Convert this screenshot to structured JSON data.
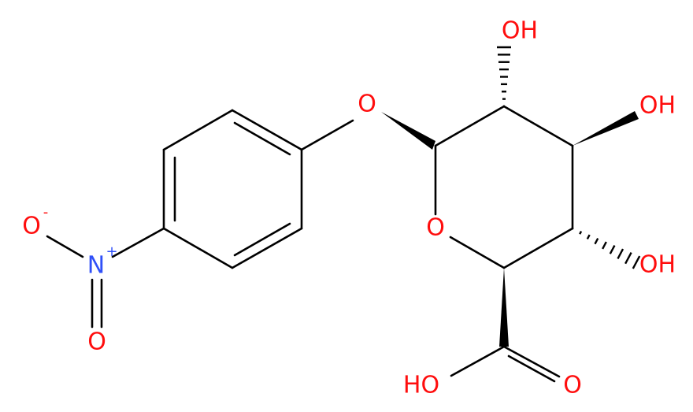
{
  "atoms": [
    {
      "label": "O"
    },
    {
      "label": "OH"
    },
    {
      "label": "OH"
    },
    {
      "label": "OH"
    },
    {
      "label": "O"
    },
    {
      "label": "HO"
    },
    {
      "label": "O"
    },
    {
      "label": "O",
      "charge": "-"
    },
    {
      "label": "N",
      "charge": "+"
    },
    {
      "label": "O"
    }
  ]
}
